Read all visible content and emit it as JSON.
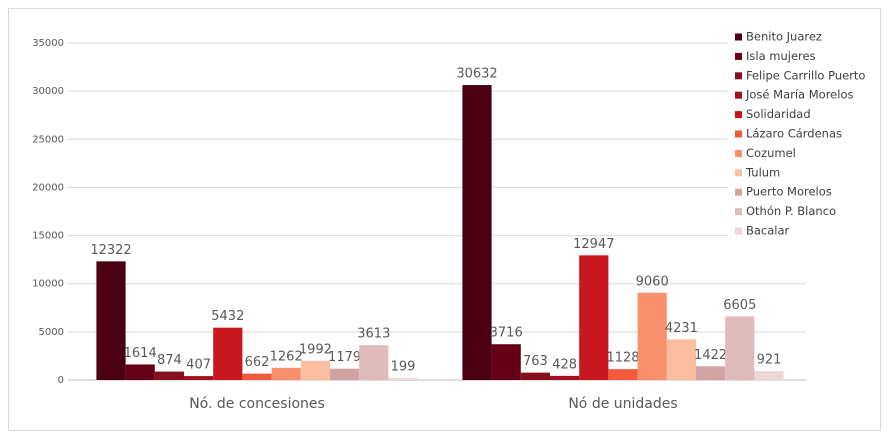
{
  "chart_data": {
    "type": "bar",
    "categories": [
      "Nó. de concesiones",
      "Nó de unidades"
    ],
    "series": [
      {
        "name": "Benito Juarez",
        "color": "#4a0012",
        "values": [
          12322,
          30632
        ]
      },
      {
        "name": "Isla mujeres",
        "color": "#650016",
        "values": [
          1614,
          3716
        ]
      },
      {
        "name": "Felipe Carrillo Puerto",
        "color": "#860e1f",
        "values": [
          874,
          763
        ]
      },
      {
        "name": "José María Morelos",
        "color": "#a11221",
        "values": [
          407,
          428
        ]
      },
      {
        "name": "Solidaridad",
        "color": "#c8171e",
        "values": [
          5432,
          12947
        ]
      },
      {
        "name": "Lázaro Cárdenas",
        "color": "#f15a3a",
        "values": [
          662,
          1128
        ]
      },
      {
        "name": "Cozumel",
        "color": "#f8906e",
        "values": [
          1262,
          9060
        ]
      },
      {
        "name": "Tulum",
        "color": "#fbbea0",
        "values": [
          1992,
          4231
        ]
      },
      {
        "name": "Puerto Morelos",
        "color": "#d3a2a3",
        "values": [
          1179,
          1422
        ]
      },
      {
        "name": "Othón P. Blanco",
        "color": "#e0bbbc",
        "values": [
          3613,
          6605
        ]
      },
      {
        "name": "Bacalar",
        "color": "#ecd7d7",
        "values": [
          199,
          921
        ]
      }
    ],
    "ylim": [
      0,
      35000
    ],
    "yticks": [
      0,
      5000,
      10000,
      15000,
      20000,
      25000,
      30000,
      35000
    ],
    "grid": true,
    "legend": "right"
  }
}
